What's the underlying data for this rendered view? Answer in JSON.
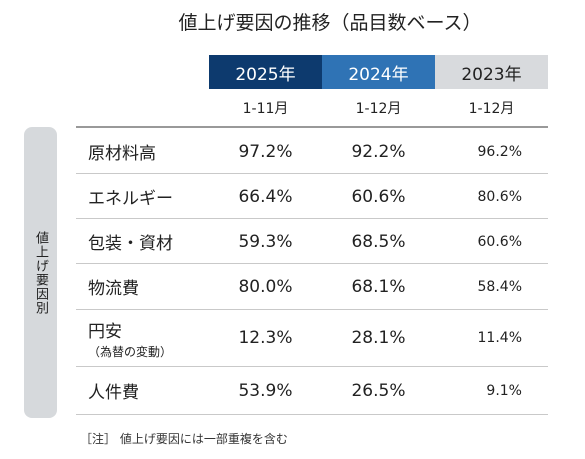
{
  "title": "値上げ要因の推移（品目数ベース）",
  "columns": [
    {
      "year": "2025年",
      "period": "1-11月",
      "color": "#0d3a6e"
    },
    {
      "year": "2024年",
      "period": "1-12月",
      "color": "#2f73b5"
    },
    {
      "year": "2023年",
      "period": "1-12月",
      "color": "#d8dadd"
    }
  ],
  "side_label": "値上げ要因別",
  "rows": [
    {
      "label": "原材料高",
      "sub": "",
      "values": [
        "97.2%",
        "92.2%",
        "96.2%"
      ]
    },
    {
      "label": "エネルギー",
      "sub": "",
      "values": [
        "66.4%",
        "60.6%",
        "80.6%"
      ]
    },
    {
      "label": "包装・資材",
      "sub": "",
      "values": [
        "59.3%",
        "68.5%",
        "60.6%"
      ]
    },
    {
      "label": "物流費",
      "sub": "",
      "values": [
        "80.0%",
        "68.1%",
        "58.4%"
      ]
    },
    {
      "label": "円安",
      "sub": "（為替の変動）",
      "values": [
        "12.3%",
        "28.1%",
        "11.4%"
      ]
    },
    {
      "label": "人件費",
      "sub": "",
      "values": [
        "53.9%",
        "26.5%",
        "9.1%"
      ]
    }
  ],
  "note": "［注］ 値上げ要因には一部重複を含む"
}
